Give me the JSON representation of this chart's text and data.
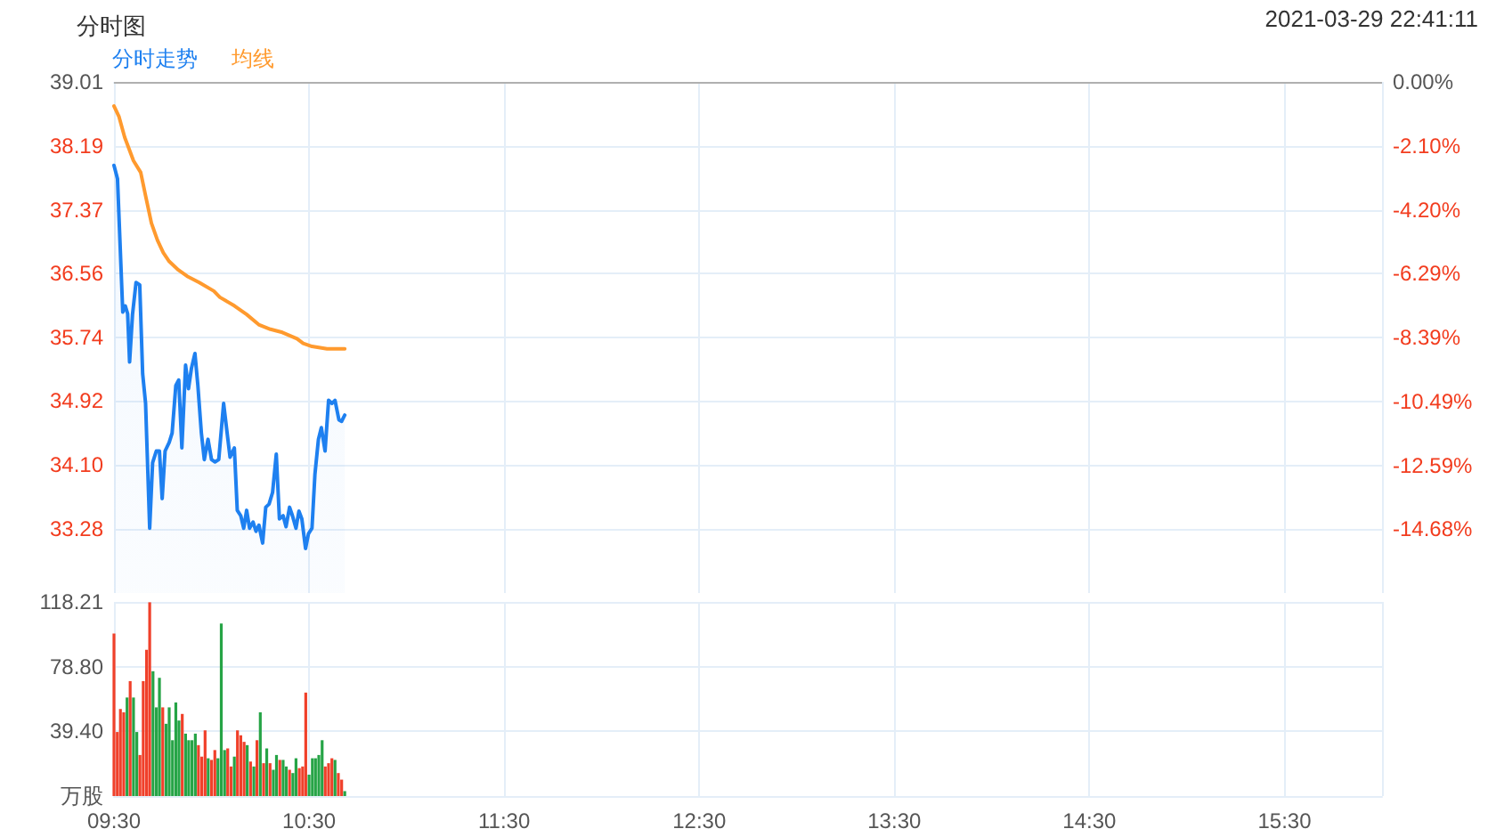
{
  "chart_data": [
    {
      "type": "line",
      "title": "分时图",
      "annotations": [
        "2021-03-29 22:41:11"
      ],
      "legend": "top left",
      "grid": true,
      "tick_labels": "y",
      "xlim": [
        9.5,
        16
      ],
      "xticks": [
        9.5,
        10.5,
        11.5,
        12.5,
        13.5,
        14.5,
        15.5,
        16
      ],
      "ylim": [
        32.46,
        39.01
      ],
      "yticks": [
        39.01,
        38.19,
        37.37,
        36.56,
        35.74,
        34.92,
        {
          "value": 34.1,
          "label": "34.10"
        },
        33.28
      ],
      "y2lim": [
        -16.78,
        0
      ],
      "y2ticks": [
        {
          "value": 0,
          "label": "0.00%"
        },
        {
          "value": -2.1,
          "label": "-2.10%"
        },
        {
          "value": -4.2,
          "label": "-4.20%"
        },
        {
          "value": -6.29,
          "label": "-6.29%"
        },
        {
          "value": -8.39,
          "label": "-8.39%"
        },
        {
          "value": -10.49,
          "label": "-10.49%"
        },
        {
          "value": -12.59,
          "label": "-12.59%"
        },
        {
          "value": -14.68,
          "label": "-14.68%"
        }
      ],
      "ref_lines": [
        {
          "axis": "y",
          "value": 39.01,
          "color": "#b0b0b0"
        }
      ],
      "series": [
        {
          "name": "分时走势",
          "type": "area",
          "color": "#1e80f0",
          "x": [
            9.5,
            9.518,
            9.545,
            9.558,
            9.57,
            9.58,
            9.595,
            9.613,
            9.632,
            9.647,
            9.662,
            9.683,
            9.698,
            9.717,
            9.733,
            9.747,
            9.762,
            9.783,
            9.798,
            9.817,
            9.832,
            9.848,
            9.867,
            9.882,
            9.897,
            9.915,
            9.93,
            9.948,
            9.963,
            9.982,
            10.0,
            10.018,
            10.037,
            10.062,
            10.08,
            10.095,
            10.117,
            10.132,
            10.15,
            10.165,
            10.18,
            10.195,
            10.213,
            10.228,
            10.243,
            10.262,
            10.278,
            10.295,
            10.313,
            10.332,
            10.348,
            10.367,
            10.382,
            10.4,
            10.415,
            10.433,
            10.448,
            10.463,
            10.482,
            10.497,
            10.515,
            10.53,
            10.548,
            10.563,
            10.582,
            10.6,
            10.617,
            10.633,
            10.653,
            10.667,
            10.683
          ],
          "values": [
            37.94,
            37.77,
            36.06,
            36.14,
            36.04,
            35.42,
            36.03,
            36.44,
            36.41,
            35.27,
            34.89,
            33.29,
            34.13,
            34.28,
            34.28,
            33.67,
            34.28,
            34.39,
            34.51,
            35.12,
            35.19,
            34.32,
            35.38,
            35.08,
            35.34,
            35.53,
            35.12,
            34.51,
            34.17,
            34.43,
            34.17,
            34.14,
            34.17,
            34.89,
            34.51,
            34.2,
            34.32,
            33.52,
            33.45,
            33.29,
            33.52,
            33.29,
            33.37,
            33.25,
            33.33,
            33.1,
            33.56,
            33.6,
            33.75,
            34.24,
            33.41,
            33.45,
            33.31,
            33.56,
            33.45,
            33.29,
            33.51,
            33.41,
            33.03,
            33.22,
            33.29,
            33.98,
            34.43,
            34.58,
            34.28,
            34.93,
            34.89,
            34.93,
            34.68,
            34.66,
            34.74
          ]
        },
        {
          "name": "均线",
          "color": "#ff9a2e",
          "x": [
            9.5,
            9.525,
            9.555,
            9.6,
            9.637,
            9.662,
            9.692,
            9.723,
            9.753,
            9.783,
            9.83,
            9.875,
            9.937,
            10.012,
            10.043,
            10.118,
            10.18,
            10.242,
            10.302,
            10.363,
            10.438,
            10.47,
            10.515,
            10.592,
            10.683
          ],
          "values": [
            38.7,
            38.57,
            38.3,
            38.0,
            37.85,
            37.55,
            37.2,
            36.98,
            36.82,
            36.71,
            36.6,
            36.52,
            36.44,
            36.33,
            36.25,
            36.14,
            36.03,
            35.9,
            35.84,
            35.8,
            35.72,
            35.66,
            35.62,
            35.59,
            35.59
          ]
        }
      ]
    },
    {
      "type": "bar",
      "grid": true,
      "xlim": [
        9.5,
        16
      ],
      "xticks": [
        {
          "value": 9.5,
          "label": "09:30"
        },
        {
          "value": 10.5,
          "label": "10:30"
        },
        {
          "value": 11.5,
          "label": "11:30"
        },
        {
          "value": 12.5,
          "label": "12:30"
        },
        {
          "value": 13.5,
          "label": "13:30"
        },
        {
          "value": 14.5,
          "label": "14:30"
        },
        {
          "value": 15.5,
          "label": "15:30"
        },
        {
          "value": 16,
          "label": null
        }
      ],
      "ylim": [
        0,
        118.21
      ],
      "yticks": [
        {
          "value": 0,
          "label": "万股"
        },
        {
          "value": 39.4,
          "label": "39.40"
        },
        {
          "value": 78.8,
          "label": "78.80"
        },
        118.21
      ],
      "x": [
        9.5,
        9.517,
        9.533,
        9.55,
        9.567,
        9.583,
        9.6,
        9.617,
        9.633,
        9.65,
        9.667,
        9.683,
        9.7,
        9.717,
        9.733,
        9.75,
        9.767,
        9.783,
        9.8,
        9.817,
        9.833,
        9.85,
        9.867,
        9.883,
        9.9,
        9.917,
        9.933,
        9.95,
        9.967,
        9.983,
        10.0,
        10.017,
        10.033,
        10.05,
        10.067,
        10.083,
        10.1,
        10.117,
        10.133,
        10.15,
        10.167,
        10.183,
        10.2,
        10.217,
        10.233,
        10.25,
        10.267,
        10.283,
        10.3,
        10.317,
        10.333,
        10.35,
        10.367,
        10.383,
        10.4,
        10.417,
        10.433,
        10.45,
        10.467,
        10.483,
        10.5,
        10.517,
        10.533,
        10.55,
        10.567,
        10.583,
        10.6,
        10.617,
        10.633,
        10.65,
        10.667,
        10.683
      ],
      "values": [
        99,
        39,
        53,
        51,
        60,
        70,
        60,
        39,
        25,
        70,
        89,
        118,
        76,
        54,
        72,
        54,
        44,
        54,
        34,
        57,
        46,
        50,
        38,
        34,
        34,
        38,
        31,
        24,
        40,
        23,
        22,
        28,
        23,
        105,
        28,
        29,
        18,
        24,
        40,
        37,
        33,
        31,
        21,
        18,
        34,
        51,
        20,
        29,
        20,
        16,
        25,
        22,
        22,
        18,
        16,
        14,
        23,
        17,
        18,
        63,
        13,
        23,
        23,
        25,
        34,
        18,
        20,
        23,
        22,
        14,
        10,
        3
      ],
      "colors": [
        "#f0402a",
        "#f0402a",
        "#f0402a",
        "#f0402a",
        "#26a446",
        "#f0402a",
        "#26a446",
        "#26a446",
        "#f0402a",
        "#f0402a",
        "#f0402a",
        "#f0402a",
        "#26a446",
        "#26a446",
        "#26a446",
        "#f0402a",
        "#26a446",
        "#26a446",
        "#26a446",
        "#26a446",
        "#26a446",
        "#f0402a",
        "#26a446",
        "#26a446",
        "#26a446",
        "#26a446",
        "#f0402a",
        "#f0402a",
        "#f0402a",
        "#26a446",
        "#f0402a",
        "#f0402a",
        "#26a446",
        "#26a446",
        "#26a446",
        "#f0402a",
        "#f0402a",
        "#26a446",
        "#f0402a",
        "#f0402a",
        "#f0402a",
        "#26a446",
        "#f0402a",
        "#26a446",
        "#f0402a",
        "#26a446",
        "#f0402a",
        "#26a446",
        "#f0402a",
        "#26a446",
        "#26a446",
        "#f0402a",
        "#26a446",
        "#26a446",
        "#f0402a",
        "#26a446",
        "#26a446",
        "#f0402a",
        "#f0402a",
        "#f0402a",
        "#26a446",
        "#26a446",
        "#26a446",
        "#26a446",
        "#26a446",
        "#f0402a",
        "#f0402a",
        "#f0402a",
        "#26a446",
        "#f0402a",
        "#f0402a",
        "#26a446"
      ]
    }
  ]
}
